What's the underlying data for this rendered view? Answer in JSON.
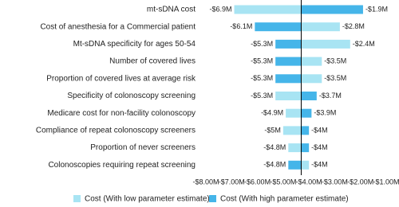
{
  "chart_data": {
    "type": "tornado",
    "categories": [
      "mt-sDNA cost",
      "Cost of anesthesia for a Commercial patient",
      "Mt-sDNA specificity for ages 50-54",
      "Number of covered lives",
      "Proportion of covered lives at average risk",
      "Specificity of colonoscopy screening",
      "Medicare cost for non-facility colonoscopy",
      "Compliance of repeat colonoscopy screeners",
      "Proportion of never screeners",
      "Colonoscopies requiring repeat screening"
    ],
    "base_value": -4.3,
    "series": [
      {
        "name": "Cost (With low parameter estimate)",
        "color": "#a8e4f3",
        "values": [
          -6.9,
          -2.8,
          -2.4,
          -3.5,
          -3.5,
          -5.3,
          -4.9,
          -5.0,
          -4.8,
          -4.0
        ],
        "value_labels": [
          "-$6.9M",
          "-$2.8M",
          "-$2.4M",
          "-$3.5M",
          "-$3.5M",
          "-$5.3M",
          "-$4.9M",
          "-$5M",
          "-$4.8M",
          "-$4M"
        ]
      },
      {
        "name": "Cost (With high parameter estimate)",
        "color": "#45b5e9",
        "values": [
          -1.9,
          -6.1,
          -5.3,
          -5.3,
          -5.3,
          -3.7,
          -3.9,
          -4.0,
          -4.0,
          -4.8
        ],
        "value_labels": [
          "-$1.9M",
          "-$6.1M",
          "-$5.3M",
          "-$5.3M",
          "-$5.3M",
          "-$3.7M",
          "-$3.9M",
          "-$4M",
          "-$4M",
          "-$4.8M"
        ]
      }
    ],
    "xlim": [
      -8,
      -1
    ],
    "xticks": [
      {
        "value": -8,
        "label": "-$8.00M"
      },
      {
        "value": -7,
        "label": "-$7.00M"
      },
      {
        "value": -6,
        "label": "-$6.00M"
      },
      {
        "value": -5,
        "label": "-$5.00M"
      },
      {
        "value": -4,
        "label": "-$4.00M"
      },
      {
        "value": -3,
        "label": "-$3.00M"
      },
      {
        "value": -2,
        "label": "-$2.00M"
      },
      {
        "value": -1,
        "label": "-$1.00M"
      }
    ]
  }
}
